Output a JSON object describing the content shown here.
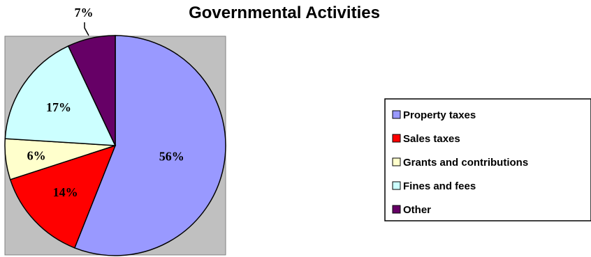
{
  "chart_data": {
    "type": "pie",
    "title": "Governmental Activities",
    "categories": [
      "Property taxes",
      "Sales taxes",
      "Grants and contributions",
      "Fines and fees",
      "Other"
    ],
    "values": [
      56,
      14,
      6,
      17,
      7
    ],
    "labels": [
      "56%",
      "14%",
      "6%",
      "17%",
      "7%"
    ],
    "colors": [
      "#9999ff",
      "#ff0000",
      "#ffffcc",
      "#ccffff",
      "#660066"
    ],
    "plot_background": "#c0c0c0",
    "legend_position": "right"
  }
}
